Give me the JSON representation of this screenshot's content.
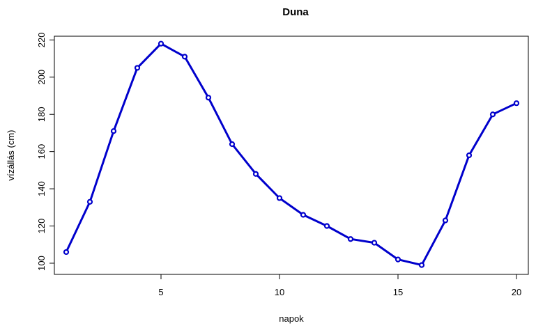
{
  "chart_data": {
    "type": "line",
    "title": "Duna",
    "xlabel": "napok",
    "ylabel": "vízállás (cm)",
    "xlim": [
      0.5,
      20.5
    ],
    "ylim": [
      94,
      222
    ],
    "x_ticks": [
      5,
      10,
      15,
      20
    ],
    "y_ticks": [
      100,
      120,
      140,
      160,
      180,
      200,
      220
    ],
    "line_color": "#0000cc",
    "marker": "open-circle",
    "grid": false,
    "x": [
      1,
      2,
      3,
      4,
      5,
      6,
      7,
      8,
      9,
      10,
      11,
      12,
      13,
      14,
      15,
      16,
      17,
      18,
      19,
      20
    ],
    "values": [
      106,
      133,
      171,
      205,
      218,
      211,
      189,
      164,
      148,
      135,
      126,
      120,
      113,
      111,
      102,
      99,
      123,
      158,
      180,
      186
    ]
  }
}
